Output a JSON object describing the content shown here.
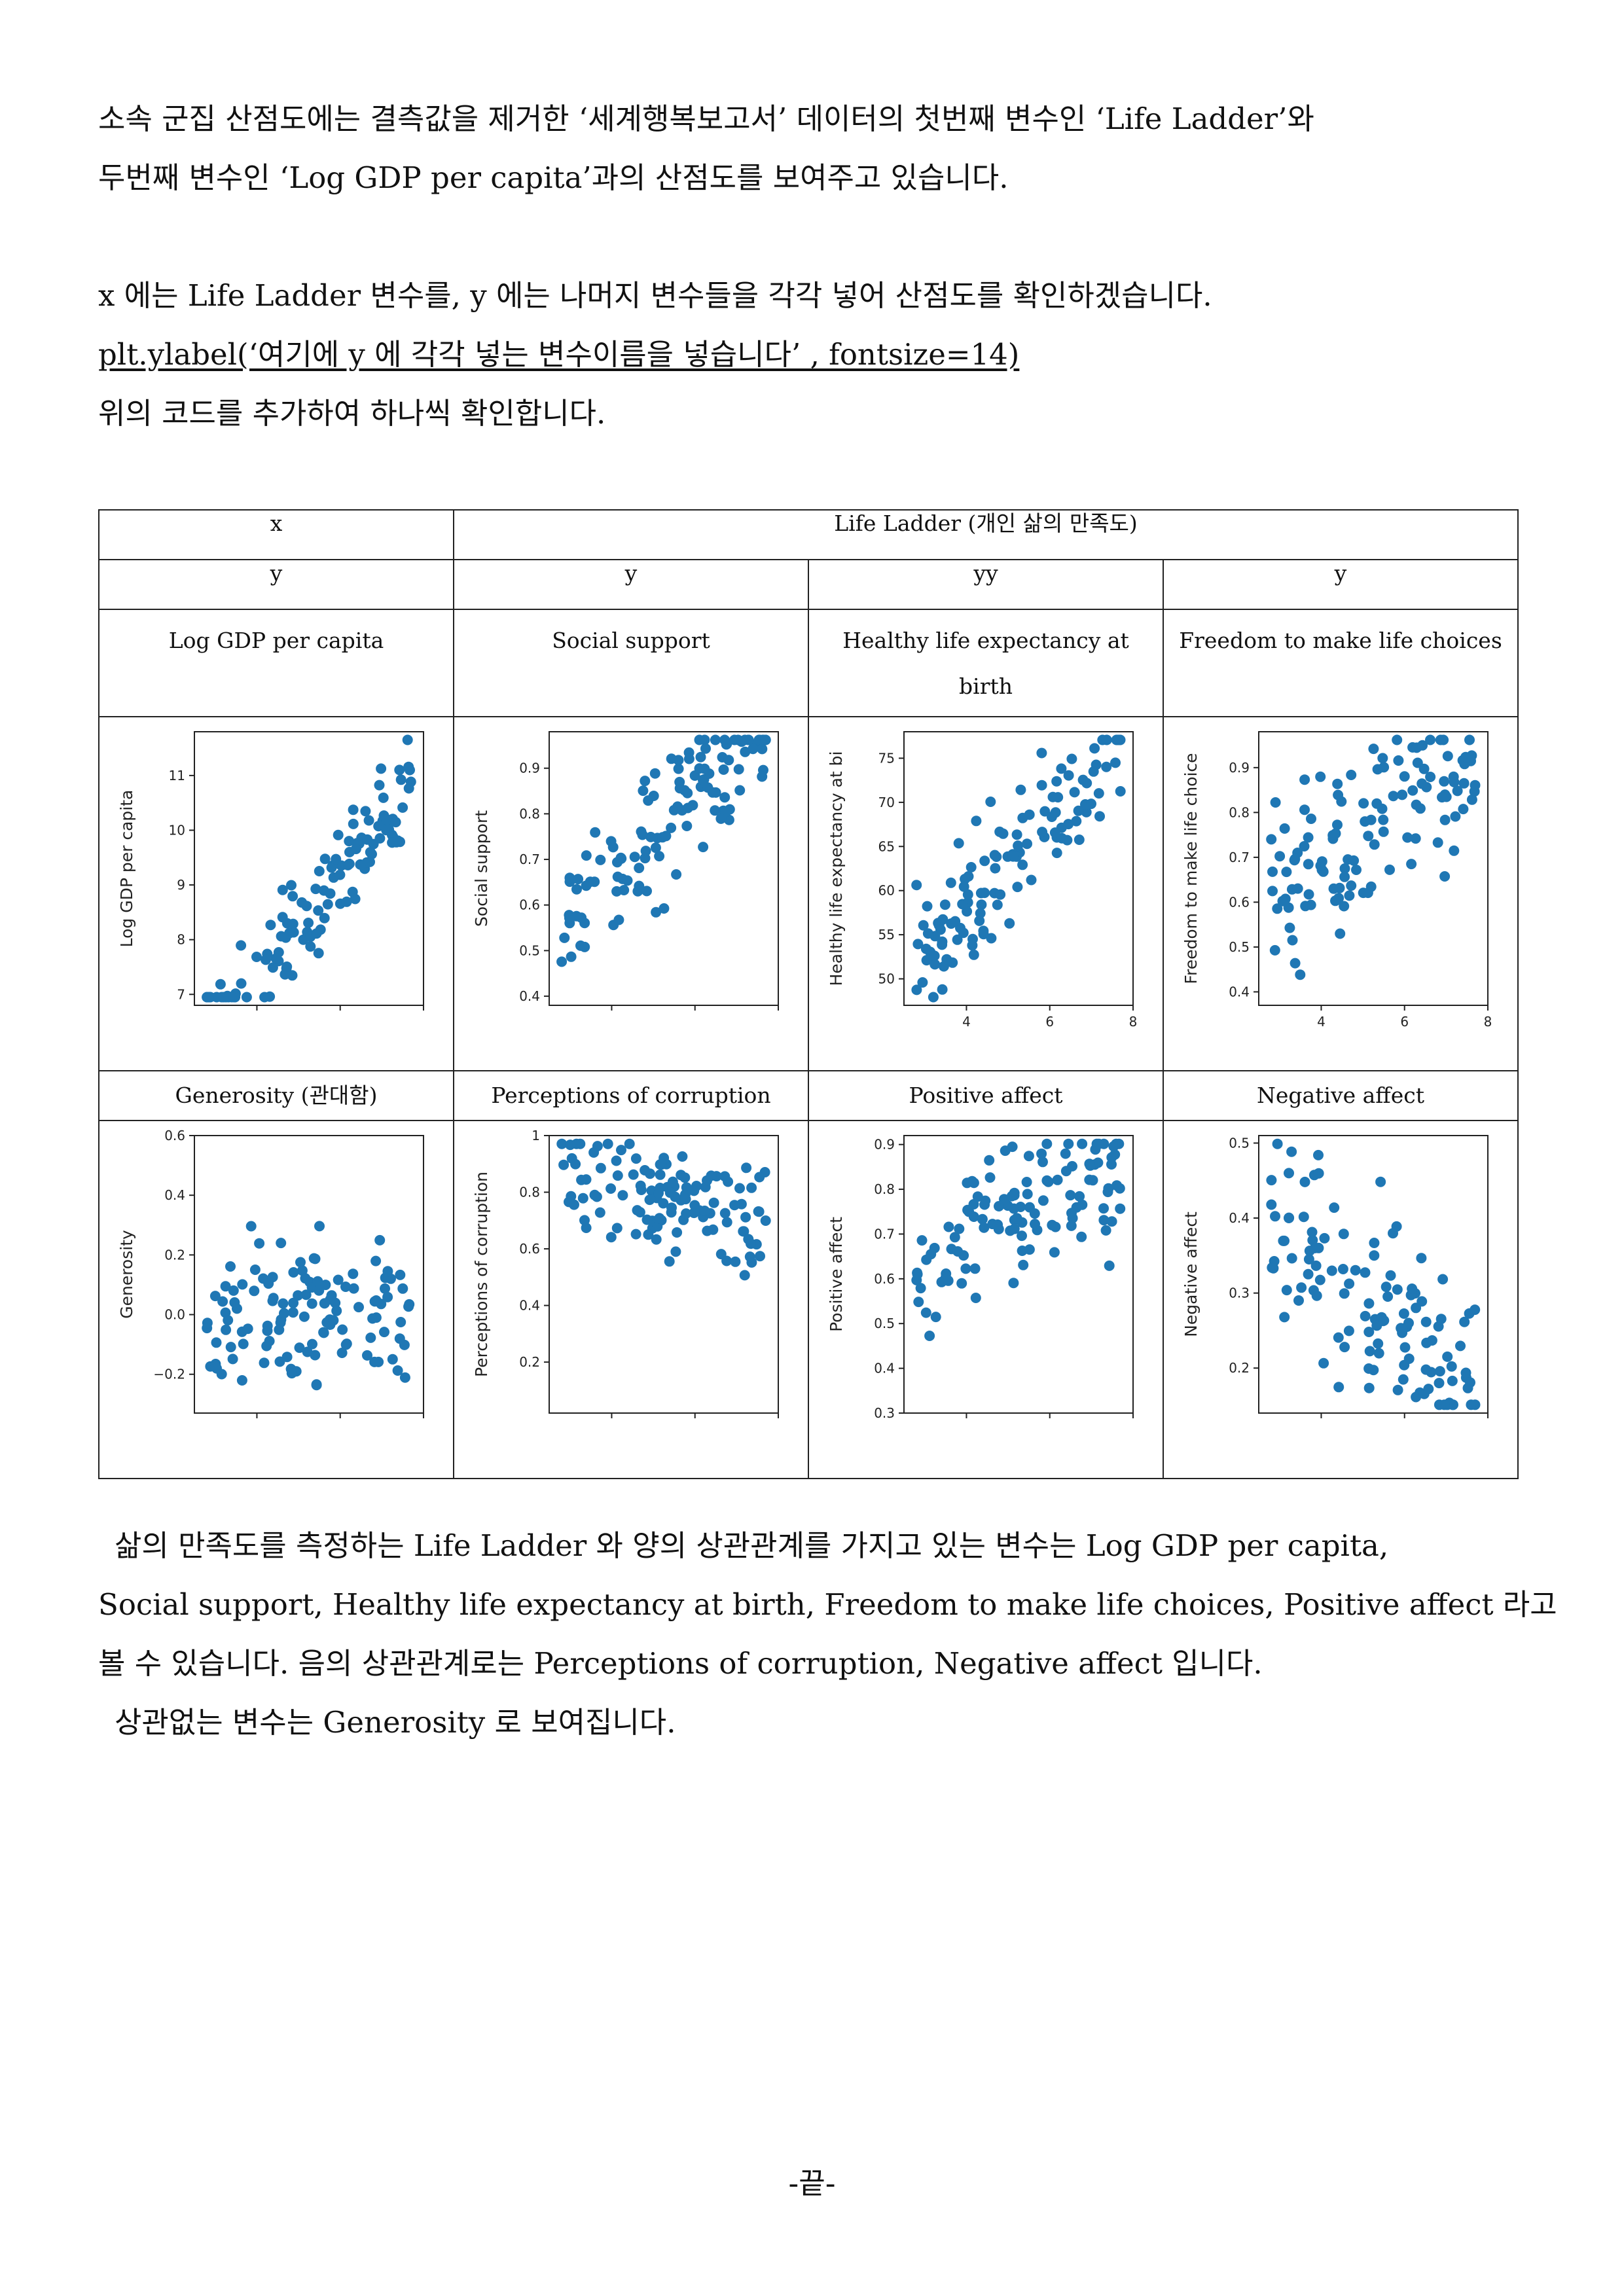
{
  "intro": {
    "line1": "소속 군집 산점도에는 결측값을 제거한 ‘세계행복보고서’ 데이터의 첫번째 변수인 ‘Life Ladder’와",
    "line2": "두번째 변수인 ‘Log GDP per capita’과의 산점도를 보여주고 있습니다."
  },
  "instruction": {
    "line1": "x 에는 Life Ladder 변수를, y 에는 나머지 변수들을 각각 넣어 산점도를 확인하겠습니다.",
    "code": "plt.ylabel(‘여기에 y 에 각각 넣는 변수이름을 넣습니다’ , fontsize=14)",
    "line3": "위의 코드를 추가하여 하나씩 확인합니다."
  },
  "table": {
    "x_label": "x",
    "x_value": "Life Ladder (개인 삶의 만족도)",
    "y_headers": [
      "y",
      "y",
      "yy",
      "y"
    ],
    "row1_names": [
      "Log GDP per capita",
      "Social support",
      "Healthy life expectancy at birth",
      "Freedom to make life choices"
    ],
    "row2_names": [
      "Generosity (관대함)",
      "Perceptions of corruption",
      "Positive affect",
      "Negative affect"
    ]
  },
  "chart_data": [
    {
      "type": "scatter",
      "ylabel": "Log GDP per capita",
      "xlim": [
        2.5,
        8
      ],
      "ylim": [
        6.8,
        11.8
      ],
      "yticks": [
        7,
        8,
        9,
        10,
        11
      ],
      "xticks": [],
      "color": "#1f77b4",
      "seed": 11,
      "slope": 1.0,
      "intercept": 3.2,
      "noise": 0.55
    },
    {
      "type": "scatter",
      "ylabel": "Social support",
      "xlim": [
        2.5,
        8
      ],
      "ylim": [
        0.38,
        0.98
      ],
      "yticks": [
        0.4,
        0.5,
        0.6,
        0.7,
        0.8,
        0.9
      ],
      "xticks": [],
      "color": "#1f77b4",
      "seed": 23,
      "slope": 0.09,
      "intercept": 0.3,
      "noise": 0.07
    },
    {
      "type": "scatter",
      "ylabel": "Healthy life expectancy at bi",
      "xlim": [
        2.5,
        8
      ],
      "ylim": [
        47,
        78
      ],
      "yticks": [
        50,
        55,
        60,
        65,
        70,
        75
      ],
      "xticks": [
        4,
        6,
        8
      ],
      "color": "#1f77b4",
      "seed": 37,
      "slope": 5.2,
      "intercept": 37,
      "noise": 3.5
    },
    {
      "type": "scatter",
      "ylabel": "Freedom to make life choice",
      "xlim": [
        2.5,
        8
      ],
      "ylim": [
        0.37,
        0.98
      ],
      "yticks": [
        0.4,
        0.5,
        0.6,
        0.7,
        0.8,
        0.9
      ],
      "xticks": [
        4,
        6,
        8
      ],
      "color": "#1f77b4",
      "seed": 41,
      "slope": 0.06,
      "intercept": 0.45,
      "noise": 0.09
    },
    {
      "type": "scatter",
      "ylabel": "Generosity",
      "xlim": [
        2.5,
        8
      ],
      "ylim": [
        -0.33,
        0.6
      ],
      "yticks": [
        -0.2,
        0.0,
        0.2,
        0.4,
        0.6
      ],
      "xticks": [],
      "color": "#1f77b4",
      "seed": 53,
      "slope": 0.0,
      "intercept": 0.0,
      "noise": 0.13
    },
    {
      "type": "scatter",
      "ylabel": "Perceptions of corruption",
      "xlim": [
        2.5,
        8
      ],
      "ylim": [
        0.02,
        1.0
      ],
      "yticks": [
        0.2,
        0.4,
        0.6,
        0.8,
        1.0
      ],
      "xticks": [],
      "color": "#1f77b4",
      "seed": 67,
      "slope": -0.04,
      "intercept": 1.0,
      "noise": 0.09
    },
    {
      "type": "scatter",
      "ylabel": "Positive affect",
      "xlim": [
        2.5,
        8
      ],
      "ylim": [
        0.3,
        0.92
      ],
      "yticks": [
        0.3,
        0.4,
        0.5,
        0.6,
        0.7,
        0.8,
        0.9
      ],
      "xticks": [],
      "color": "#1f77b4",
      "seed": 79,
      "slope": 0.045,
      "intercept": 0.5,
      "noise": 0.08
    },
    {
      "type": "scatter",
      "ylabel": "Negative affect",
      "xlim": [
        2.5,
        8
      ],
      "ylim": [
        0.14,
        0.51
      ],
      "yticks": [
        0.2,
        0.3,
        0.4,
        0.5
      ],
      "xticks": [],
      "color": "#1f77b4",
      "seed": 83,
      "slope": -0.045,
      "intercept": 0.52,
      "noise": 0.06
    }
  ],
  "conclusion": {
    "line1": "삶의 만족도를 측정하는 Life Ladder 와 양의 상관관계를 가지고 있는 변수는 Log GDP per capita,",
    "line2": "Social support, Healthy life expectancy at birth, Freedom to make life choices, Positive affect 라고",
    "line3": "볼 수 있습니다. 음의 상관관계로는 Perceptions of corruption, Negative affect 입니다.",
    "line4": "상관없는 변수는 Generosity 로 보여집니다."
  },
  "footer": "-끝-"
}
